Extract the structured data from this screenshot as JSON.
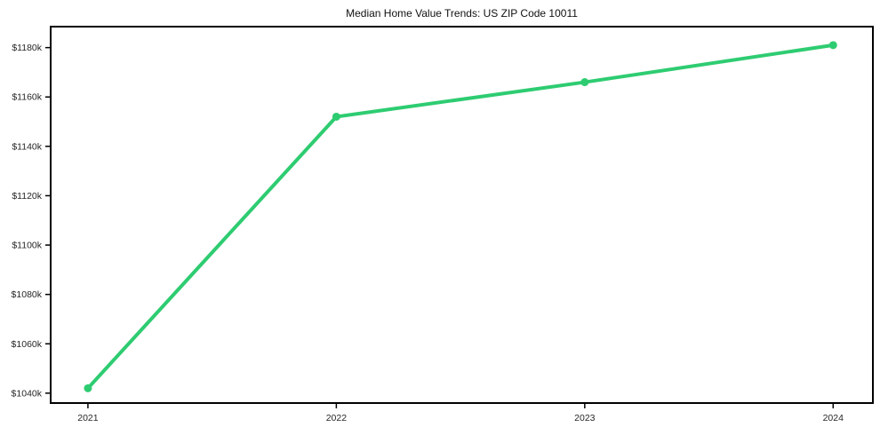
{
  "chart_data": {
    "type": "line",
    "title": "Median Home Value Trends: US ZIP Code 10011",
    "x": [
      2021,
      2022,
      2023,
      2024
    ],
    "xtick_labels": [
      "2021",
      "2022",
      "2023",
      "2024"
    ],
    "values": [
      1042,
      1152,
      1166,
      1181
    ],
    "values_unit": "USD thousands",
    "yticks": [
      1040,
      1060,
      1080,
      1100,
      1120,
      1140,
      1160,
      1180
    ],
    "ytick_labels": [
      "$1040k",
      "$1060k",
      "$1080k",
      "$1100k",
      "$1120k",
      "$1140k",
      "$1160k",
      "$1180k"
    ],
    "xlim": [
      2020.85,
      2024.16
    ],
    "ylim": [
      1036,
      1188.5
    ],
    "grid": false,
    "legend": "none",
    "line_color": "#2ecc71",
    "marker_color": "#2ecc71",
    "axis_color": "#000000",
    "tick_label_color": "#262626",
    "title_color": "#111111"
  }
}
